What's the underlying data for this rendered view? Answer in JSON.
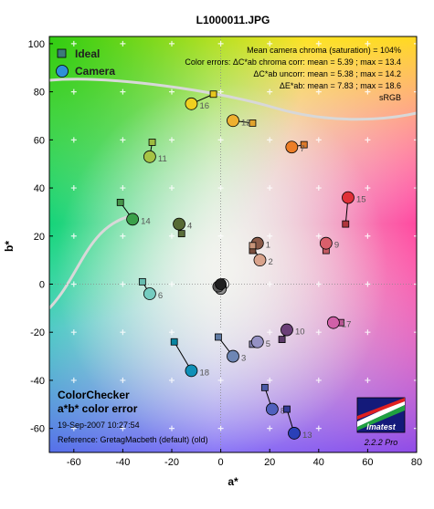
{
  "chart_data": {
    "type": "scatter",
    "title": "L1000011.JPG",
    "xlabel": "a*",
    "ylabel": "b*",
    "xlim": [
      -70,
      80
    ],
    "ylim": [
      -70,
      103
    ],
    "xticks": [
      -60,
      -40,
      -20,
      0,
      20,
      40,
      60,
      80
    ],
    "yticks": [
      -60,
      -40,
      -20,
      0,
      20,
      40,
      60,
      80,
      100
    ],
    "grid": true,
    "legend": {
      "placement": "top-left",
      "entries": [
        "Ideal",
        "Camera"
      ]
    },
    "stats_lines": [
      "Mean camera chroma (saturation) = 104%",
      "Color errors:  ΔC*ab chroma corr:  mean = 5.39 ;  max = 13.4",
      "ΔC*ab uncorr:  mean = 5.38 ;  max = 14.2",
      "ΔE*ab:  mean = 7.83 ;  max = 18.6",
      "sRGB"
    ],
    "caption_title": [
      "ColorChecker",
      "a*b* color error"
    ],
    "caption_date": "19-Sep-2007 10:27:54",
    "caption_reference": "Reference: GretagMacbeth (default) (old)",
    "logo_text": "Imatest",
    "logo_version": "2.2.2  Pro",
    "patches": [
      {
        "id": "1",
        "ideal": [
          13,
          14
        ],
        "camera": [
          15,
          17
        ],
        "ideal_color": "#7a4f3e",
        "camera_color": "#8a5a48"
      },
      {
        "id": "2",
        "ideal": [
          13,
          16
        ],
        "camera": [
          16,
          10
        ],
        "ideal_color": "#c69479",
        "camera_color": "#d9a38c"
      },
      {
        "id": "3",
        "ideal": [
          -1,
          -22
        ],
        "camera": [
          5,
          -30
        ],
        "ideal_color": "#5f7aa3",
        "camera_color": "#6e86b4"
      },
      {
        "id": "4",
        "ideal": [
          -16,
          21
        ],
        "camera": [
          -17,
          25
        ],
        "ideal_color": "#5a6e3a",
        "camera_color": "#566a34"
      },
      {
        "id": "5",
        "ideal": [
          13,
          -25
        ],
        "camera": [
          15,
          -24
        ],
        "ideal_color": "#8380b0",
        "camera_color": "#9591c4"
      },
      {
        "id": "6",
        "ideal": [
          -32,
          1
        ],
        "camera": [
          -29,
          -4
        ],
        "ideal_color": "#66bcaf",
        "camera_color": "#75ccc0"
      },
      {
        "id": "7",
        "ideal": [
          34,
          58
        ],
        "camera": [
          29,
          57
        ],
        "ideal_color": "#dc7a2a",
        "camera_color": "#ec7e28"
      },
      {
        "id": "8",
        "ideal": [
          18,
          -43
        ],
        "camera": [
          21,
          -52
        ],
        "ideal_color": "#4a5aa6",
        "camera_color": "#5060be"
      },
      {
        "id": "9",
        "ideal": [
          43,
          14
        ],
        "camera": [
          43,
          17
        ],
        "ideal_color": "#c35a62",
        "camera_color": "#da5f6b"
      },
      {
        "id": "10",
        "ideal": [
          25,
          -23
        ],
        "camera": [
          27,
          -19
        ],
        "ideal_color": "#5c3a69",
        "camera_color": "#6b3f78"
      },
      {
        "id": "11",
        "ideal": [
          -28,
          59
        ],
        "camera": [
          -29,
          53
        ],
        "ideal_color": "#9dbc40",
        "camera_color": "#a6c345"
      },
      {
        "id": "12",
        "ideal": [
          13,
          67
        ],
        "camera": [
          5,
          68
        ],
        "ideal_color": "#e0a32e",
        "camera_color": "#eeb030"
      },
      {
        "id": "13",
        "ideal": [
          27,
          -52
        ],
        "camera": [
          30,
          -62
        ],
        "ideal_color": "#353c96",
        "camera_color": "#2a40b8"
      },
      {
        "id": "14",
        "ideal": [
          -41,
          34
        ],
        "camera": [
          -36,
          27
        ],
        "ideal_color": "#469449",
        "camera_color": "#3aa04a"
      },
      {
        "id": "15",
        "ideal": [
          51,
          25
        ],
        "camera": [
          52,
          36
        ],
        "ideal_color": "#af363c",
        "camera_color": "#e03038"
      },
      {
        "id": "16",
        "ideal": [
          -3,
          79
        ],
        "camera": [
          -12,
          75
        ],
        "ideal_color": "#e7c71f",
        "camera_color": "#f0d020"
      },
      {
        "id": "17",
        "ideal": [
          49,
          -16
        ],
        "camera": [
          46,
          -16
        ],
        "ideal_color": "#bb5695",
        "camera_color": "#d060a8"
      },
      {
        "id": "18",
        "ideal": [
          -19,
          -24
        ],
        "camera": [
          -12,
          -36
        ],
        "ideal_color": "#0885a1",
        "camera_color": "#1090b8"
      }
    ],
    "neutrals": [
      {
        "camera": [
          1,
          0
        ],
        "color": "#ffffff"
      },
      {
        "camera": [
          0,
          -1
        ],
        "color": "#e6e6e6"
      },
      {
        "camera": [
          0,
          -2
        ],
        "color": "#bdbdbd"
      },
      {
        "camera": [
          0,
          -2
        ],
        "color": "#8f8f8f"
      },
      {
        "camera": [
          -1,
          -1
        ],
        "color": "#5a5a5a"
      },
      {
        "camera": [
          0,
          0
        ],
        "color": "#1f1f1f"
      }
    ]
  }
}
